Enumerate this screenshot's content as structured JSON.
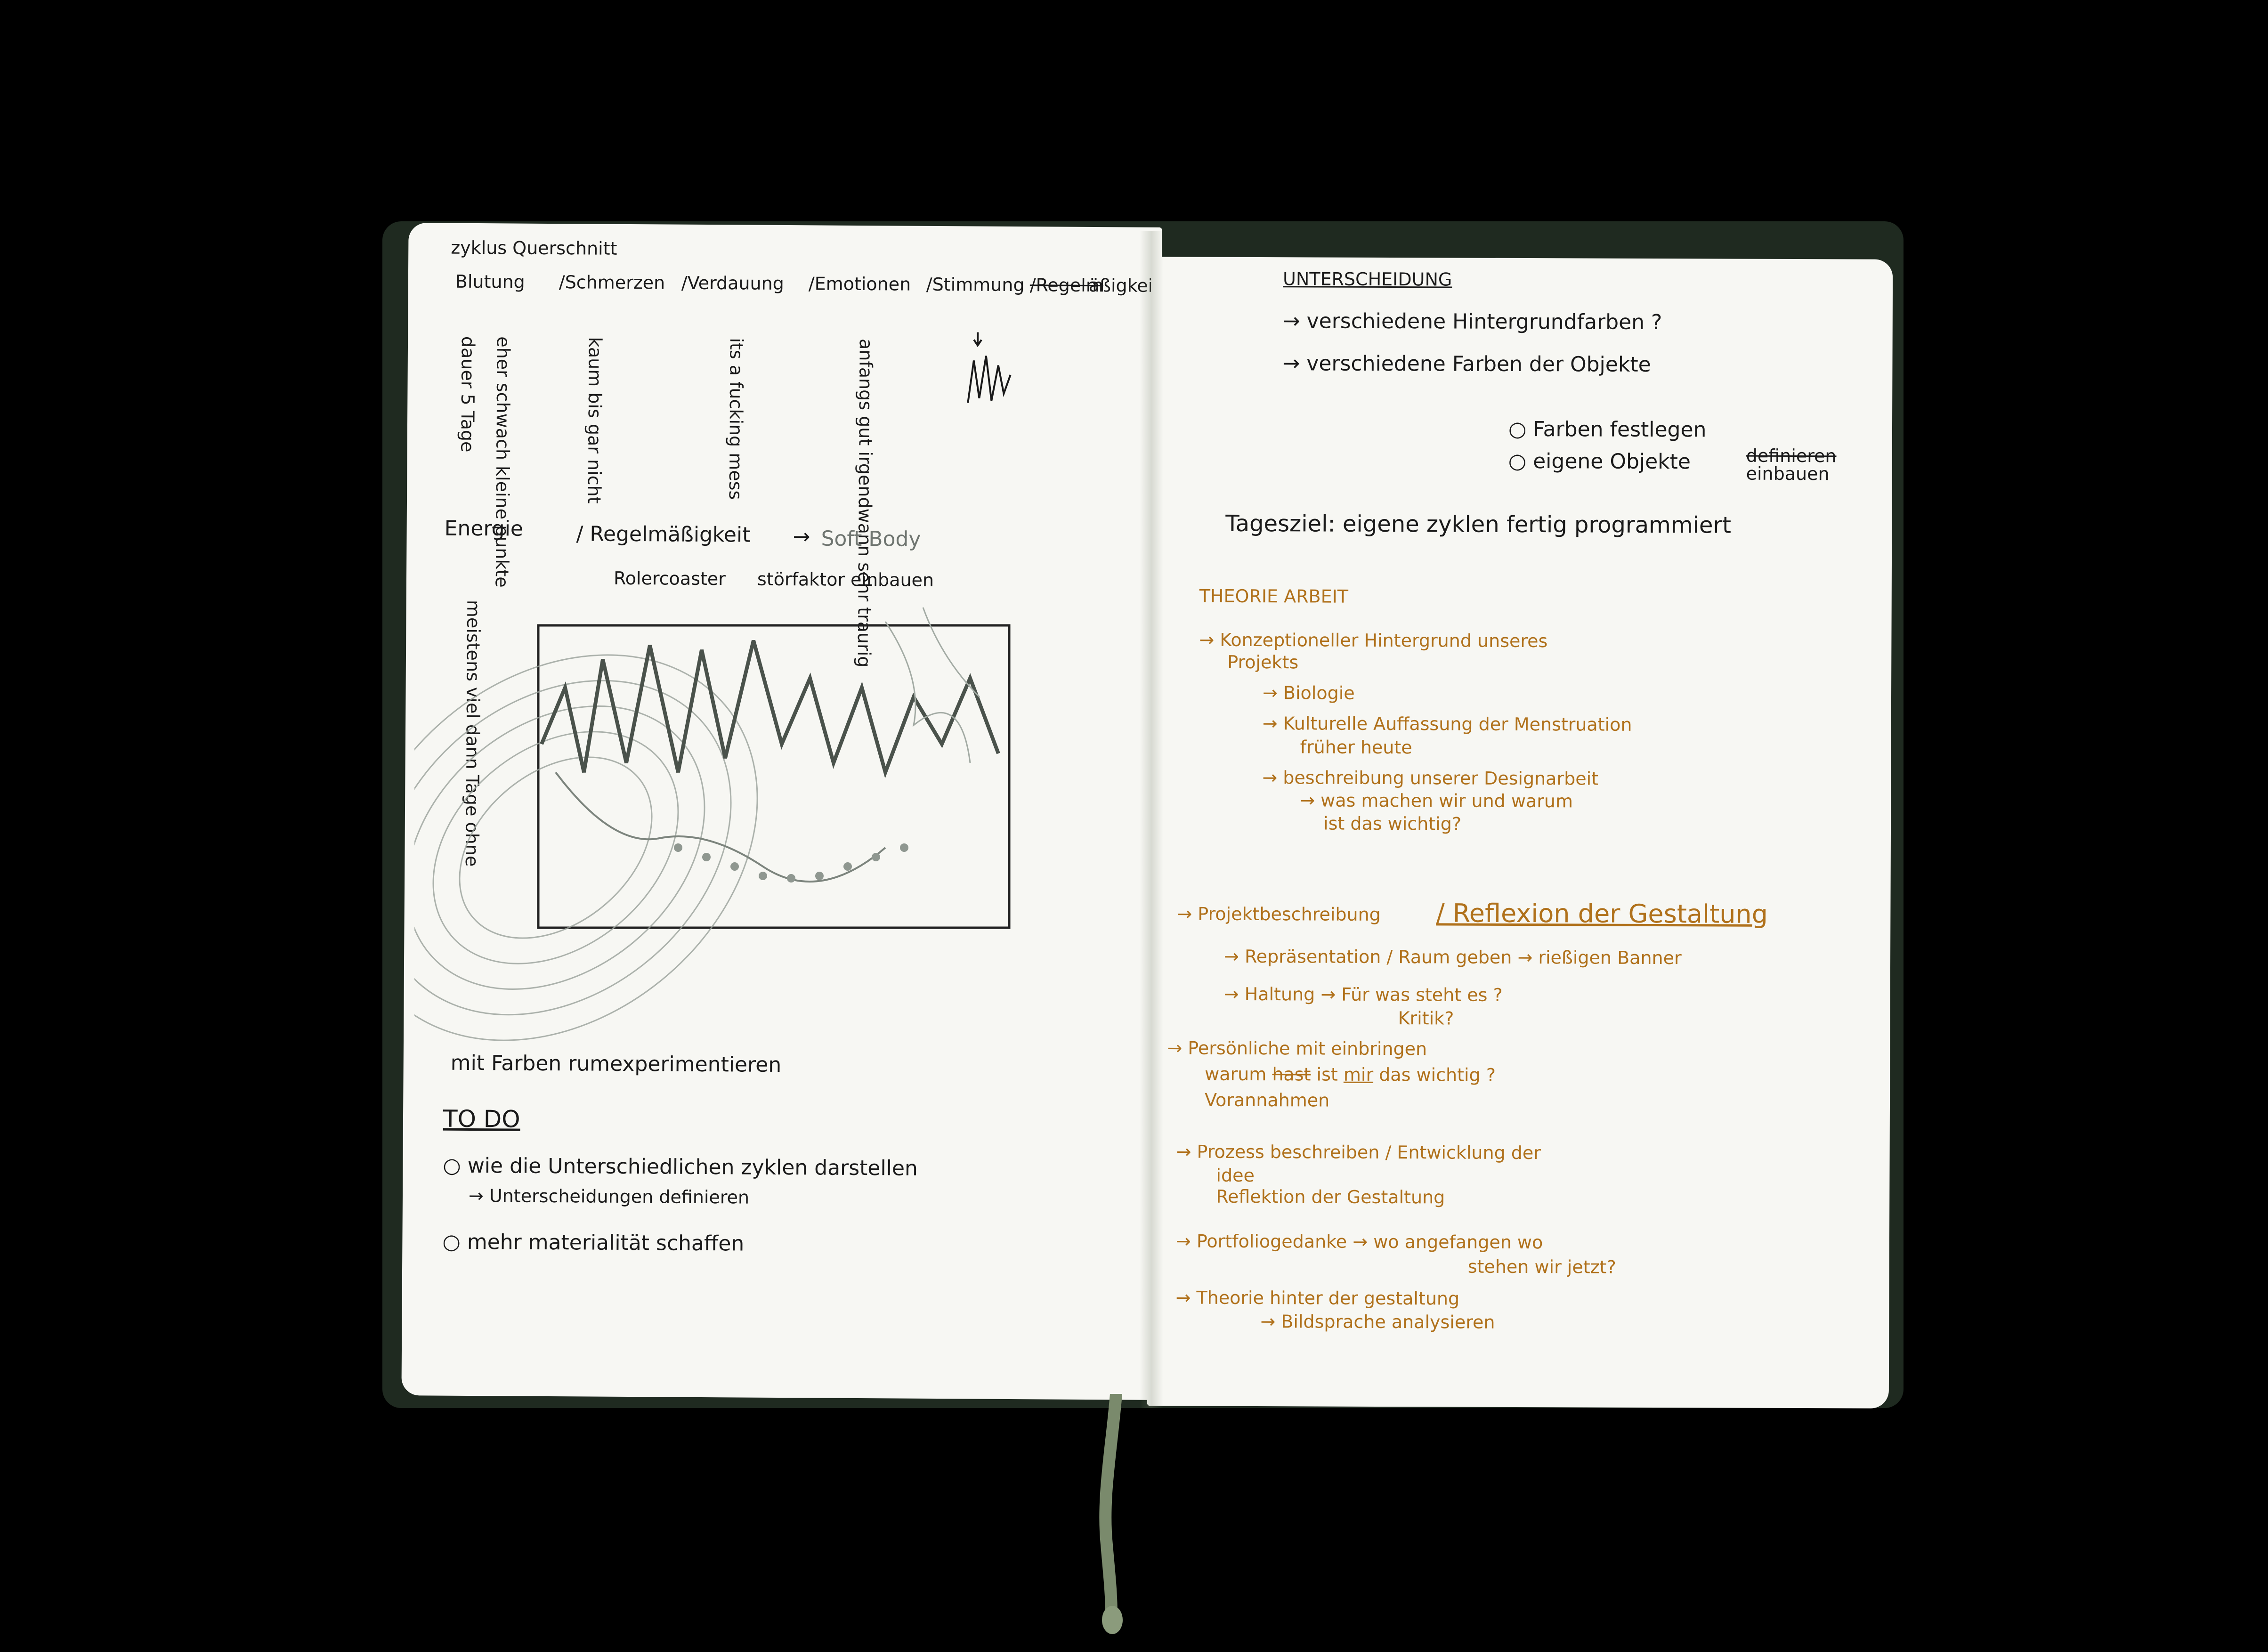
{
  "colors": {
    "background": "#000000",
    "paper": "#f7f7f3",
    "ink": "#1a1a1a",
    "pencil": "#6f7570",
    "ochre": "#b0711b"
  },
  "left_page": {
    "title": "zyklus Querschnitt",
    "categories": [
      "Blutung",
      "/Schmerzen",
      "/Verdauung",
      "/Emotionen",
      "/Stimmung",
      "/Regelm",
      "äßigkeit"
    ],
    "notes_vertical": [
      "dauer 5 Tage",
      "eher schwach kleine punkte",
      "kaum bis gar nicht",
      "its a fucking mess",
      "anfangs gut irgendwann sehr traurig"
    ],
    "energy_label": "Energie",
    "regularity": "/ Regelmäßigkeit",
    "soft_body": "Soft Body",
    "rollercoaster": "Rolercoaster",
    "stoerfaktor": "störfaktor einbauen",
    "energy_note": "meistens viel dann Tage ohne",
    "experiment": "mit Farben rumexperimentieren",
    "todo_heading": "TO DO",
    "todo_1": "wie die Unterschiedlichen zyklen darstellen",
    "todo_1_sub": "Unterscheidungen definieren",
    "todo_2": "mehr materialität schaffen"
  },
  "right_page": {
    "heading": "UNTERSCHEIDUNG",
    "item_1": "verschiedene Hintergrundfarben ?",
    "item_2": "verschiedene Farben der Objekte",
    "sub_1": "Farben festlegen",
    "sub_2": "eigene Objekte",
    "sub_2_struck": "definieren",
    "sub_2_replacement": "einbauen",
    "tagesziel": "Tagesziel: eigene zyklen fertig programmiert",
    "theorie_heading": "THEORIE ARBEIT",
    "t1": "Konzeptioneller Hintergrund unseres",
    "t1b": "Projekts",
    "t1_biologie": "Biologie",
    "t1_kulturelle": "Kulturelle Auffassung der Menstruation",
    "t1_frueher": "früher heute",
    "t1_beschreibung": "beschreibung unserer Designarbeit",
    "t1_was": "was machen wir und warum",
    "t1_ist": "ist das wichtig?",
    "p1": "Projektbeschreibung",
    "p1_reflexion": "/ Reflexion der Gestaltung",
    "p1_repr": "Repräsentation / Raum geben",
    "p1_banner": "rießigen Banner",
    "p1_haltung": "Haltung",
    "p1_fuer": "Für was steht es ?",
    "p1_kritik": "Kritik?",
    "p2_persoenliche": "Persönliche",
    "p2_mit": "mit",
    "p2_vorannahmen": "Vorannahmen",
    "p2_warum": "warum",
    "p2_hast": "hast",
    "p2_einbringen": "einbringen",
    "p2_ist": "ist",
    "p2_mir": "mir",
    "p2_wichtig": "das wichtig ?",
    "p3": "Prozess beschreiben / Entwicklung der",
    "p3_idee": "idee",
    "p3_reflektion": "Reflektion der Gestaltung",
    "p4": "Portfoliogedanke",
    "p4_wo": "wo angefangen wo",
    "p4_stehen": "stehen wir jetzt?",
    "p5": "Theorie hinter der gestaltung",
    "p5_bild": "Bildsprache analysieren"
  }
}
